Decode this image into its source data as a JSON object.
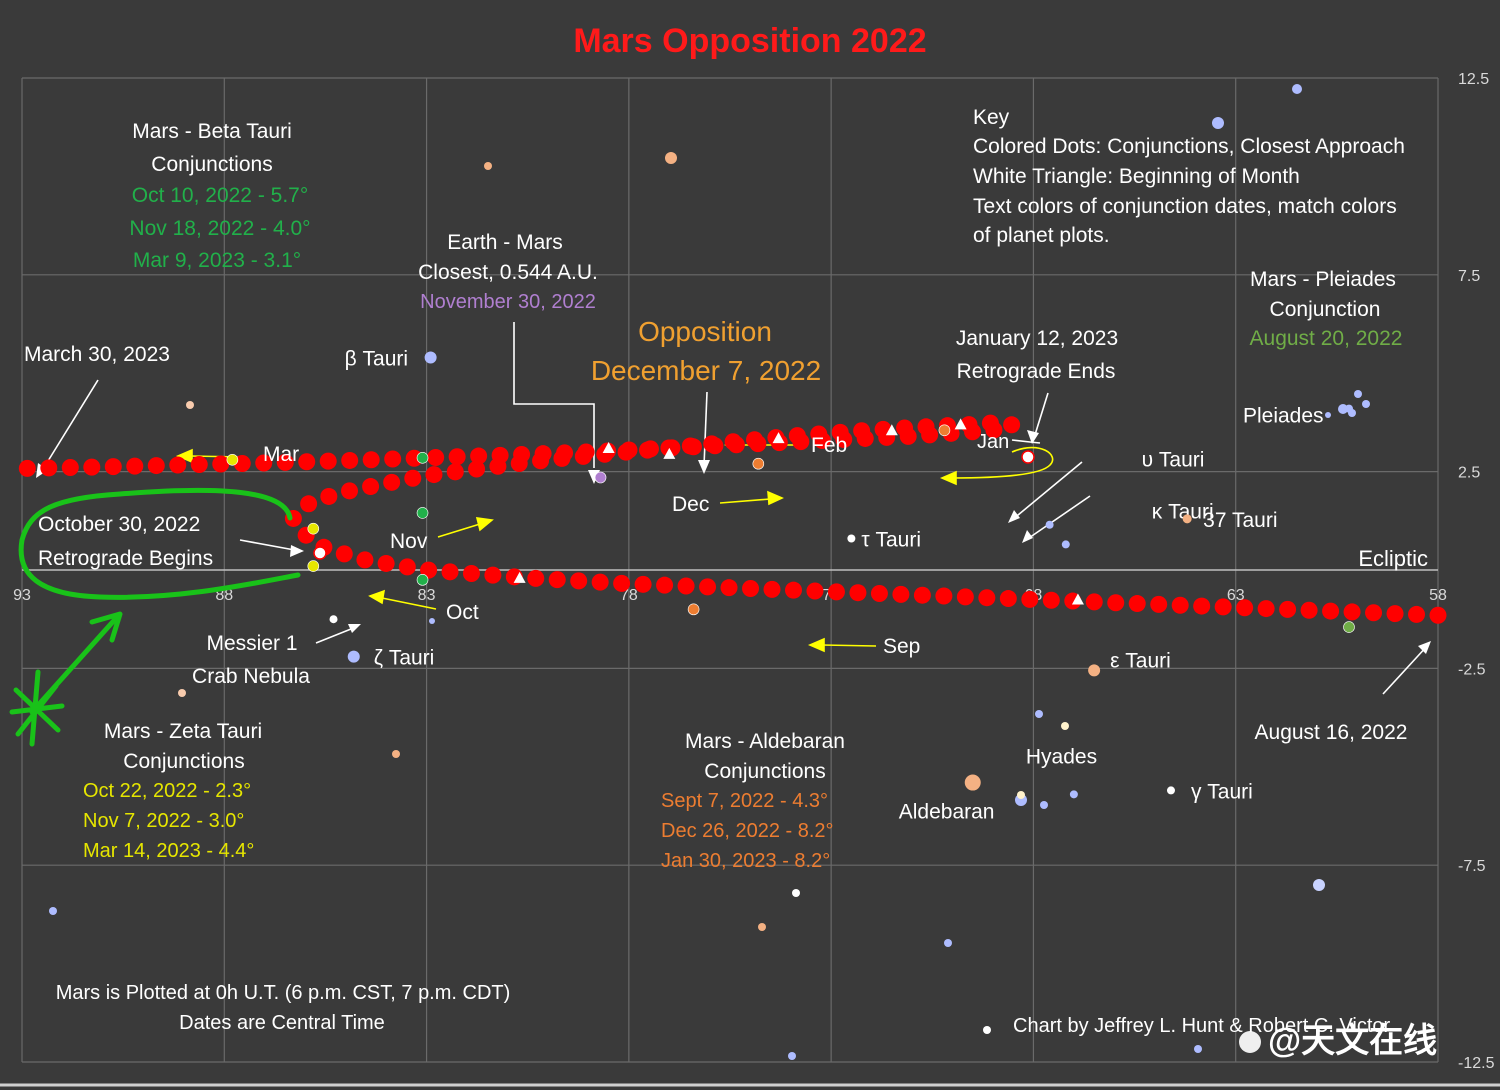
{
  "chart_data": {
    "type": "scatter",
    "title": "Mars Opposition 2022",
    "title_color": "#ff1a1a",
    "x_axis": {
      "ticks": [
        93,
        88,
        83,
        78,
        73,
        68,
        63,
        58
      ],
      "tick_labels": [
        "93",
        "88",
        "83",
        "78",
        "73",
        "68",
        "63",
        "58"
      ],
      "range": [
        93,
        58
      ],
      "reversed": true
    },
    "y_axis": {
      "ticks": [
        12.5,
        7.5,
        2.5,
        -2.5,
        -7.5,
        -12.5
      ],
      "tick_labels": [
        "12.5",
        "7.5",
        "2.5",
        "-2.5",
        "-7.5",
        "-12.5"
      ],
      "range": [
        -12.5,
        12.5
      ]
    },
    "grid": true,
    "ecliptic_label": "Ecliptic",
    "colors": {
      "background": "#3a3a3a",
      "grid": "#6a6a6a",
      "mars_path": "#ff0000",
      "arrows": "#ffff00",
      "text": "#ffffff",
      "beta_tauri": "#21b04a",
      "zeta_tauri": "#e6e600",
      "aldebaran": "#ed7d31",
      "pleiades": "#70ad47",
      "earth_mars": "#b07fd0",
      "opposition": "#f0a030",
      "star_blue": "#aebcff",
      "star_orange": "#f4b183",
      "star_white": "#ffffff",
      "annotation_green": "#19c219"
    },
    "series": [
      {
        "name": "Mars",
        "points": [
          [
            58.0,
            -1.15
          ],
          [
            60.5,
            -1.05
          ],
          [
            63.0,
            -0.95
          ],
          [
            65.5,
            -0.85
          ],
          [
            68.0,
            -0.75
          ],
          [
            70.5,
            -0.65
          ],
          [
            73.0,
            -0.55
          ],
          [
            75.5,
            -0.45
          ],
          [
            78.0,
            -0.35
          ],
          [
            80.5,
            -0.2
          ],
          [
            83.0,
            0.0
          ],
          [
            84.5,
            0.25
          ],
          [
            85.5,
            0.55
          ],
          [
            86.0,
            0.9
          ],
          [
            86.3,
            1.3
          ],
          [
            86.0,
            1.65
          ],
          [
            85.2,
            1.95
          ],
          [
            84.0,
            2.2
          ],
          [
            83.0,
            2.4
          ],
          [
            81.5,
            2.6
          ],
          [
            80.0,
            2.8
          ],
          [
            78.5,
            2.95
          ],
          [
            77.0,
            3.1
          ],
          [
            75.5,
            3.25
          ],
          [
            74.0,
            3.4
          ],
          [
            72.5,
            3.52
          ],
          [
            71.0,
            3.62
          ],
          [
            69.5,
            3.7
          ],
          [
            68.8,
            3.75
          ],
          [
            68.5,
            3.68
          ],
          [
            69.0,
            3.55
          ],
          [
            71.0,
            3.4
          ],
          [
            73.0,
            3.3
          ],
          [
            75.0,
            3.2
          ],
          [
            77.0,
            3.1
          ],
          [
            79.0,
            3.0
          ],
          [
            81.0,
            2.92
          ],
          [
            83.0,
            2.85
          ],
          [
            85.0,
            2.78
          ],
          [
            87.0,
            2.72
          ],
          [
            89.0,
            2.67
          ],
          [
            91.0,
            2.62
          ],
          [
            93.0,
            2.58
          ]
        ]
      }
    ],
    "month_triangles": [
      {
        "label": "Sep",
        "x": 66.9,
        "y": -0.75
      },
      {
        "label": "Oct",
        "x": 80.7,
        "y": -0.2
      },
      {
        "label": "Dec",
        "x": 74.3,
        "y": 3.35
      },
      {
        "label": "Jan",
        "x": 69.8,
        "y": 3.7
      },
      {
        "label": "Jan",
        "x": 71.5,
        "y": 3.55
      },
      {
        "label": "Nov",
        "x": 77.0,
        "y": 2.95
      },
      {
        "label": "Nov",
        "x": 78.5,
        "y": 3.1
      }
    ],
    "event_dots": [
      {
        "x": 85.8,
        "y": 1.05,
        "color": "#e6e600"
      },
      {
        "x": 85.8,
        "y": 0.1,
        "color": "#e6e600"
      },
      {
        "x": 87.8,
        "y": 2.8,
        "color": "#e6e600"
      },
      {
        "x": 83.1,
        "y": 1.45,
        "color": "#21b04a"
      },
      {
        "x": 83.1,
        "y": -0.25,
        "color": "#21b04a"
      },
      {
        "x": 83.1,
        "y": 2.85,
        "color": "#21b04a"
      },
      {
        "x": 76.4,
        "y": -1.0,
        "color": "#ed7d31"
      },
      {
        "x": 74.8,
        "y": 2.7,
        "color": "#ed7d31"
      },
      {
        "x": 70.2,
        "y": 3.55,
        "color": "#ed7d31"
      },
      {
        "x": 60.2,
        "y": -1.45,
        "color": "#70ad47"
      },
      {
        "x": 78.7,
        "y": 2.35,
        "color": "#b07fd0"
      }
    ],
    "stars": [
      {
        "label": "β Tauri",
        "x": 82.9,
        "y": 5.4,
        "color": "#aebcff"
      },
      {
        "label": "τ Tauri",
        "x": 72.5,
        "y": 0.8,
        "color": "#ffffff"
      },
      {
        "label": "υ Tauri",
        "x": 67.6,
        "y": 1.15,
        "color": "#aebcff"
      },
      {
        "label": "κ Tauri",
        "x": 67.2,
        "y": 0.65,
        "color": "#aebcff"
      },
      {
        "label": "37 Tauri",
        "x": 64.2,
        "y": 1.3,
        "color": "#f4b183"
      },
      {
        "label": "ζ Tauri",
        "x": 84.8,
        "y": -2.2,
        "color": "#aebcff"
      },
      {
        "label": "ε Tauri",
        "x": 66.5,
        "y": -2.55,
        "color": "#f4b183"
      },
      {
        "label": "γ Tauri",
        "x": 64.6,
        "y": -5.6,
        "color": "#ffffff"
      },
      {
        "label": "Aldebaran",
        "x": 69.5,
        "y": -5.4,
        "color": "#f4b183"
      },
      {
        "label": "Hyades",
        "x": 67.0,
        "y": -5.7,
        "color": "#aebcff"
      },
      {
        "label": "Pleiades",
        "x": 60.2,
        "y": 4.1,
        "color": "#aebcff"
      },
      {
        "label": "Messier 1",
        "x": 85.3,
        "y": -1.25,
        "color": "#ffffff"
      }
    ]
  },
  "annotations": {
    "key_title": "Key",
    "key_line1": "Colored Dots: Conjunctions, Closest Approach",
    "key_line2": "White Triangle: Beginning of Month",
    "key_line3": "Text colors of conjunction dates, match colors",
    "key_line4": "of planet plots.",
    "beta_title1": "Mars - Beta Tauri",
    "beta_title2": "Conjunctions",
    "beta_d1": "Oct 10, 2022 - 5.7°",
    "beta_d2": "Nov 18, 2022 - 4.0°",
    "beta_d3": "Mar 9, 2023 - 3.1°",
    "earth1": "Earth - Mars",
    "earth2": "Closest, 0.544 A.U.",
    "earth3": "November 30, 2022",
    "opp1": "Opposition",
    "opp2": "December 7, 2022",
    "jan1": "January 12, 2023",
    "jan2": "Retrograde Ends",
    "pleiades1": "Mars - Pleiades",
    "pleiades2": "Conjunction",
    "pleiades3": "August 20, 2022",
    "march": "March 30, 2023",
    "oct30_1": "October 30, 2022",
    "oct30_2": "Retrograde Begins",
    "messier1": "Messier 1",
    "messier2": "Crab Nebula",
    "zeta1": "Mars - Zeta Tauri",
    "zeta2": "Conjunctions",
    "zeta_d1": "Oct 22, 2022 - 2.3°",
    "zeta_d2": "Nov 7, 2022 - 3.0°",
    "zeta_d3": "Mar 14, 2023 - 4.4°",
    "ald1": "Mars - Aldebaran",
    "ald2": "Conjunctions",
    "ald_d1": "Sept 7, 2022 - 4.3°",
    "ald_d2": "Dec 26, 2022 - 8.2°",
    "ald_d3": "Jan 30, 2023 - 8.2°",
    "aug16": "August 16, 2022",
    "foot1": "Mars is Plotted at 0h U.T. (6 p.m. CST, 7 p.m. CDT)",
    "foot2": "Dates are Central Time",
    "credit": "Chart by Jeffrey L. Hunt & Robert C. Victor",
    "watermark": "@天文在线",
    "month_mar": "Mar",
    "month_feb": "Feb",
    "month_jan": "Jan",
    "month_dec": "Dec",
    "month_nov": "Nov",
    "month_oct": "Oct",
    "month_sep": "Sep"
  }
}
